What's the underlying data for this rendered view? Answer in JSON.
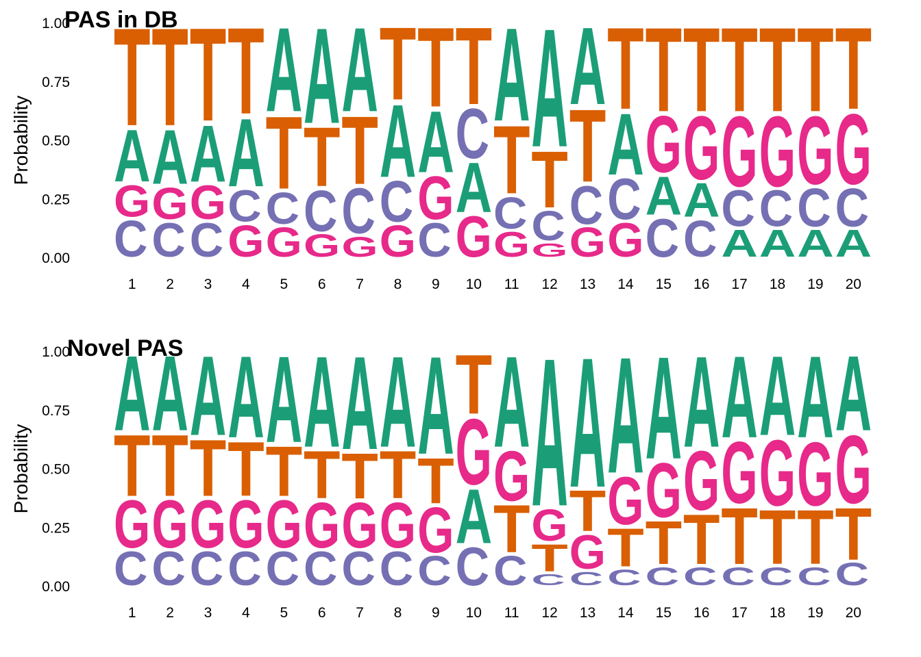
{
  "chart_data": [
    {
      "type": "sequence-logo",
      "title": "PAS in DB",
      "ylabel": "Probability",
      "ylim": [
        0,
        1
      ],
      "yticks": [
        "0.00",
        "0.25",
        "0.50",
        "0.75",
        "1.00"
      ],
      "positions": [
        "1",
        "2",
        "3",
        "4",
        "5",
        "6",
        "7",
        "8",
        "9",
        "10",
        "11",
        "12",
        "13",
        "14",
        "15",
        "16",
        "17",
        "18",
        "19",
        "20"
      ],
      "colors": {
        "A": "#1b9e77",
        "C": "#7570b3",
        "G": "#e7298a",
        "T": "#d95f02"
      },
      "stacks": [
        {
          "C": 0.17,
          "G": 0.15,
          "A": 0.24,
          "T": 0.44
        },
        {
          "C": 0.16,
          "G": 0.15,
          "A": 0.25,
          "T": 0.44
        },
        {
          "C": 0.16,
          "G": 0.16,
          "A": 0.26,
          "T": 0.42
        },
        {
          "G": 0.15,
          "C": 0.15,
          "A": 0.31,
          "T": 0.39
        },
        {
          "G": 0.14,
          "C": 0.15,
          "T": 0.33,
          "A": 0.38
        },
        {
          "G": 0.11,
          "C": 0.19,
          "T": 0.27,
          "A": 0.43
        },
        {
          "G": 0.1,
          "C": 0.21,
          "T": 0.31,
          "A": 0.38
        },
        {
          "G": 0.15,
          "C": 0.19,
          "A": 0.33,
          "T": 0.33
        },
        {
          "C": 0.16,
          "G": 0.2,
          "A": 0.28,
          "T": 0.36
        },
        {
          "G": 0.19,
          "A": 0.23,
          "C": 0.23,
          "T": 0.35
        },
        {
          "G": 0.12,
          "C": 0.15,
          "T": 0.31,
          "A": 0.42
        },
        {
          "G": 0.07,
          "C": 0.14,
          "T": 0.26,
          "A": 0.53
        },
        {
          "G": 0.14,
          "C": 0.18,
          "T": 0.33,
          "A": 0.35
        },
        {
          "G": 0.16,
          "C": 0.19,
          "A": 0.28,
          "T": 0.37
        },
        {
          "C": 0.18,
          "A": 0.18,
          "G": 0.26,
          "T": 0.38
        },
        {
          "C": 0.17,
          "A": 0.16,
          "G": 0.29,
          "T": 0.38
        },
        {
          "A": 0.13,
          "C": 0.17,
          "G": 0.32,
          "T": 0.38
        },
        {
          "A": 0.13,
          "C": 0.17,
          "G": 0.32,
          "T": 0.38
        },
        {
          "A": 0.13,
          "C": 0.18,
          "G": 0.31,
          "T": 0.38
        },
        {
          "A": 0.13,
          "C": 0.18,
          "G": 0.32,
          "T": 0.37
        }
      ]
    },
    {
      "type": "sequence-logo",
      "title": "Novel PAS",
      "ylabel": "Probability",
      "ylim": [
        0,
        1
      ],
      "yticks": [
        "0.00",
        "0.25",
        "0.50",
        "0.75",
        "1.00"
      ],
      "positions": [
        "1",
        "2",
        "3",
        "4",
        "5",
        "6",
        "7",
        "8",
        "9",
        "10",
        "11",
        "12",
        "13",
        "14",
        "15",
        "16",
        "17",
        "18",
        "19",
        "20"
      ],
      "colors": {
        "A": "#1b9e77",
        "C": "#7570b3",
        "G": "#e7298a",
        "T": "#d95f02"
      },
      "stacks": [
        {
          "C": 0.16,
          "G": 0.22,
          "T": 0.28,
          "A": 0.34
        },
        {
          "C": 0.16,
          "G": 0.22,
          "T": 0.28,
          "A": 0.34
        },
        {
          "C": 0.16,
          "G": 0.22,
          "T": 0.26,
          "A": 0.36
        },
        {
          "C": 0.16,
          "G": 0.22,
          "T": 0.25,
          "A": 0.37
        },
        {
          "C": 0.16,
          "G": 0.22,
          "T": 0.23,
          "A": 0.39
        },
        {
          "C": 0.16,
          "G": 0.21,
          "T": 0.22,
          "A": 0.41
        },
        {
          "C": 0.16,
          "G": 0.21,
          "T": 0.21,
          "A": 0.42
        },
        {
          "C": 0.16,
          "G": 0.21,
          "T": 0.22,
          "A": 0.41
        },
        {
          "C": 0.14,
          "G": 0.21,
          "T": 0.21,
          "A": 0.44
        },
        {
          "C": 0.18,
          "A": 0.25,
          "G": 0.3,
          "T": 0.27
        },
        {
          "C": 0.14,
          "T": 0.22,
          "G": 0.23,
          "A": 0.41
        },
        {
          "C": 0.06,
          "T": 0.13,
          "G": 0.15,
          "A": 0.66
        },
        {
          "C": 0.07,
          "G": 0.16,
          "T": 0.19,
          "A": 0.58
        },
        {
          "C": 0.08,
          "T": 0.18,
          "G": 0.22,
          "A": 0.52
        },
        {
          "C": 0.09,
          "T": 0.2,
          "G": 0.25,
          "A": 0.46
        },
        {
          "C": 0.09,
          "T": 0.23,
          "G": 0.27,
          "A": 0.41
        },
        {
          "C": 0.09,
          "T": 0.26,
          "G": 0.28,
          "A": 0.37
        },
        {
          "C": 0.09,
          "T": 0.25,
          "G": 0.3,
          "A": 0.36
        },
        {
          "C": 0.09,
          "T": 0.25,
          "G": 0.29,
          "A": 0.37
        },
        {
          "C": 0.11,
          "T": 0.24,
          "G": 0.31,
          "A": 0.34
        }
      ]
    }
  ]
}
